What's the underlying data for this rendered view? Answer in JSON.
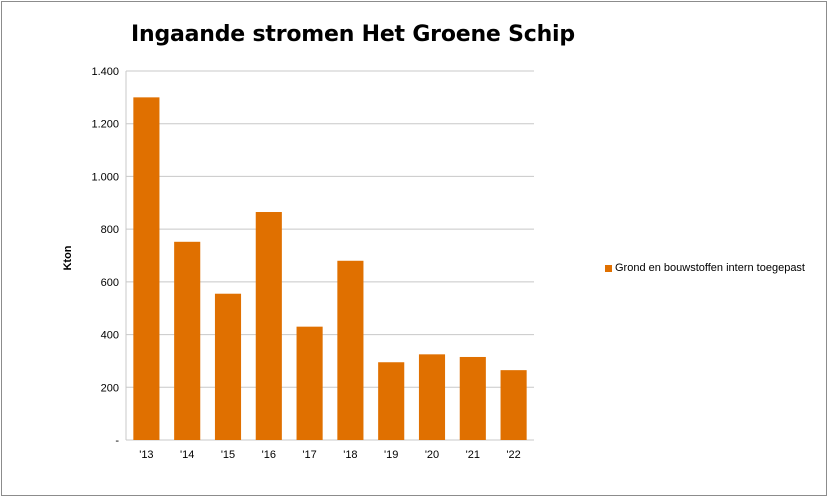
{
  "chart_data": {
    "type": "bar",
    "title": "Ingaande stromen Het Groene Schip",
    "ylabel": "Kton",
    "xlabel": "",
    "categories": [
      "'13",
      "'14",
      "'15",
      "'16",
      "'17",
      "'18",
      "'19",
      "'20",
      "'21",
      "'22"
    ],
    "series": [
      {
        "name": "Grond en bouwstoffen intern toegepast",
        "values": [
          1300,
          752,
          555,
          865,
          430,
          680,
          295,
          325,
          315,
          265
        ]
      }
    ],
    "ylim": [
      0,
      1400
    ],
    "yticks": [
      {
        "value": 0,
        "label": "-"
      },
      {
        "value": 200,
        "label": "200"
      },
      {
        "value": 400,
        "label": "400"
      },
      {
        "value": 600,
        "label": "600"
      },
      {
        "value": 800,
        "label": "800"
      },
      {
        "value": 1000,
        "label": "1.000"
      },
      {
        "value": 1200,
        "label": "1.200"
      },
      {
        "value": 1400,
        "label": "1.400"
      }
    ],
    "grid": true,
    "legend_position": "right",
    "bar_color": "#e07000",
    "grid_color": "#c8c8c8"
  }
}
